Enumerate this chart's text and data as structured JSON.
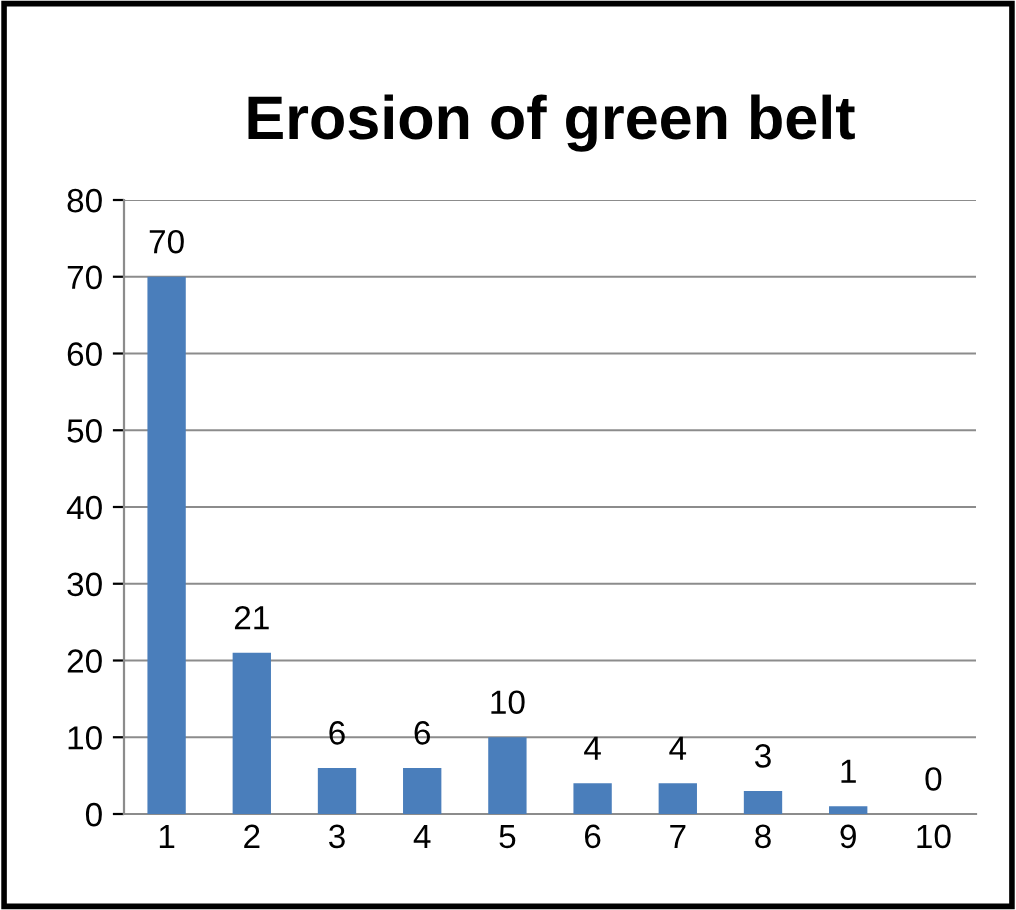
{
  "chart_data": {
    "type": "bar",
    "title": "Erosion of green belt",
    "categories": [
      "1",
      "2",
      "3",
      "4",
      "5",
      "6",
      "7",
      "8",
      "9",
      "10"
    ],
    "values": [
      70,
      21,
      6,
      6,
      10,
      4,
      4,
      3,
      1,
      0
    ],
    "color": "#4a7ebb",
    "ylim": [
      0,
      80
    ],
    "yticks": [
      0,
      10,
      20,
      30,
      40,
      50,
      60,
      70,
      80
    ],
    "grid": "y",
    "data_labels": true,
    "legend": false
  }
}
